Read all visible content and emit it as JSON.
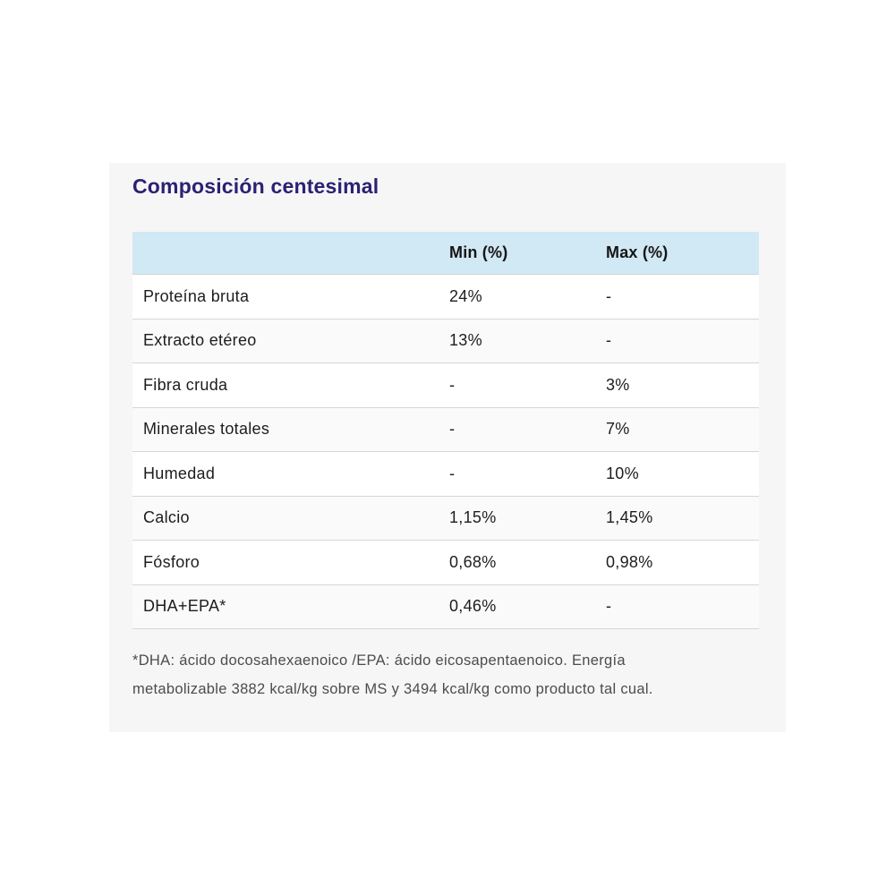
{
  "section": {
    "title": "Composición centesimal"
  },
  "table": {
    "headers": {
      "label": "",
      "min": "Min (%)",
      "max": "Max (%)"
    },
    "rows": [
      {
        "label": "Proteína bruta",
        "min": "24%",
        "max": "-"
      },
      {
        "label": "Extracto etéreo",
        "min": "13%",
        "max": "-"
      },
      {
        "label": "Fibra cruda",
        "min": "-",
        "max": "3%"
      },
      {
        "label": "Minerales totales",
        "min": "-",
        "max": "7%"
      },
      {
        "label": "Humedad",
        "min": "-",
        "max": "10%"
      },
      {
        "label": "Calcio",
        "min": "1,15%",
        "max": "1,45%"
      },
      {
        "label": "Fósforo",
        "min": "0,68%",
        "max": "0,98%"
      },
      {
        "label": "DHA+EPA*",
        "min": "0,46%",
        "max": "-"
      }
    ]
  },
  "footnote_lines": [
    "*DHA: ácido docosahexaenoico /EPA: ácido eicosapentaenoico. Energía",
    "metabolizable 3882 kcal/kg sobre MS y 3494 kcal/kg como producto tal cual."
  ],
  "colors": {
    "panel_background": "#f6f6f6",
    "header_row_background": "#d1e8f5",
    "title_text": "#2b2173",
    "body_text": "#1d1d1d",
    "footnote_text": "#4c4c4c",
    "row_divider": "#d6d6d6"
  }
}
